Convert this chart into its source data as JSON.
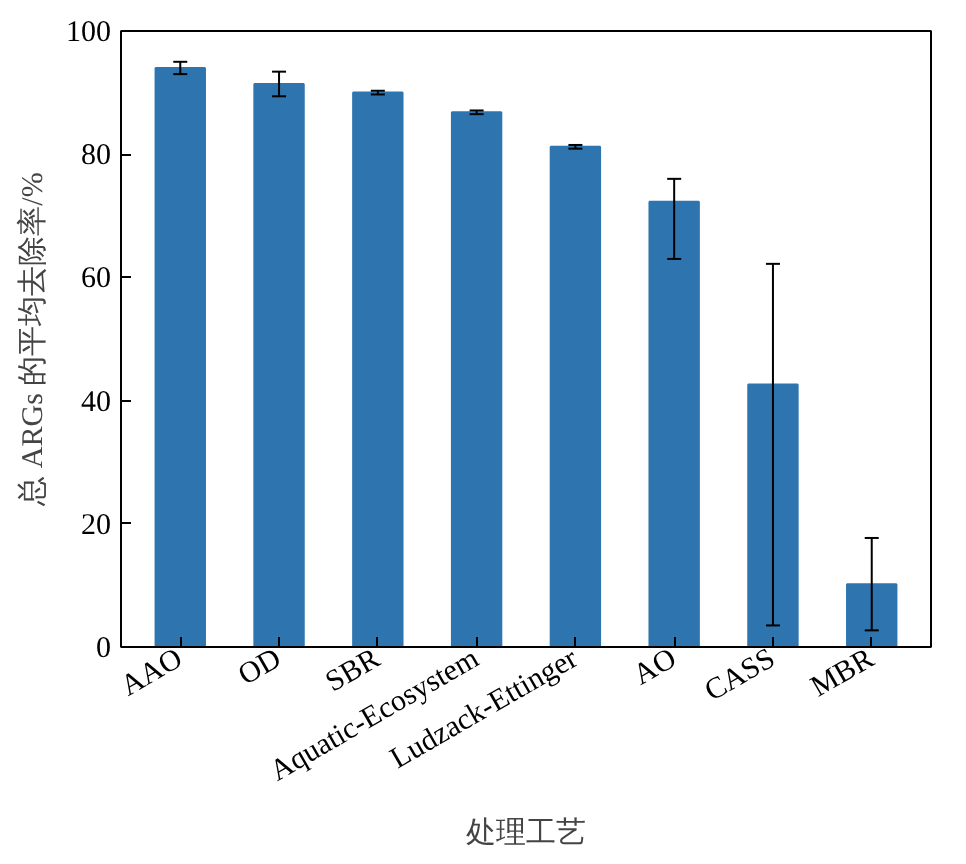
{
  "chart_data": {
    "type": "bar",
    "xlabel": "处理工艺",
    "ylabel": "总 ARGs 的平均去除率/%",
    "categories": [
      "AAO",
      "OD",
      "SBR",
      "Aquatic-Ecosystem",
      "Ludzack-Ettinger",
      "AO",
      "CASS",
      "MBR"
    ],
    "values": [
      94.0,
      91.4,
      90.0,
      86.8,
      81.2,
      72.3,
      42.6,
      10.2
    ],
    "errors": [
      1.0,
      2.0,
      0.3,
      0.3,
      0.3,
      [
        63.0,
        76.0
      ],
      [
        3.5,
        62.2
      ],
      7.5
    ],
    "color": "#2e75b0",
    "ylim": [
      0,
      100
    ],
    "yticks": [
      0,
      20,
      40,
      60,
      80,
      100
    ],
    "grid": false
  }
}
